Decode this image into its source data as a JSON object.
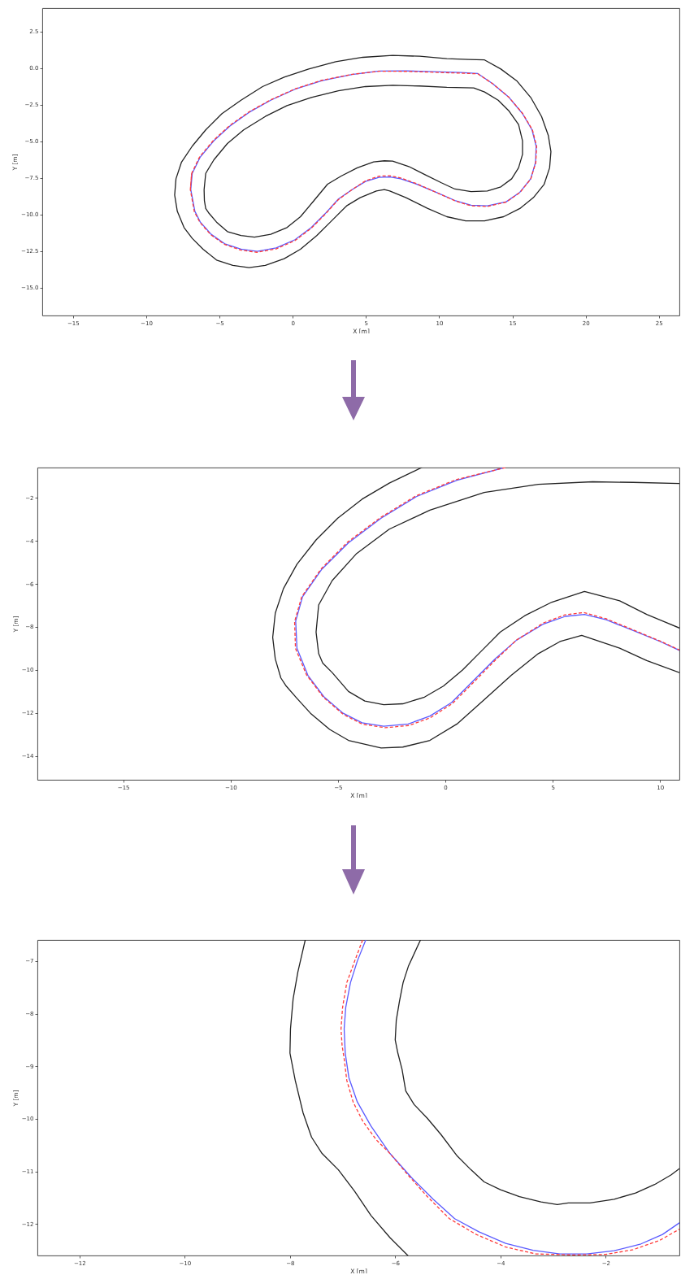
{
  "chart_data": [
    {
      "type": "line",
      "xlabel": "X [m]",
      "ylabel": "Y [m]",
      "xlim": [
        -17.1,
        26.4
      ],
      "ylim": [
        -16.9,
        4.1
      ],
      "xticks": [
        -15,
        -10,
        -5,
        0,
        5,
        10,
        15,
        20,
        25
      ],
      "yticks": [
        2.5,
        {
          "value": 0,
          "label": "0.0"
        },
        -2.5,
        {
          "value": -5,
          "label": "−5.0"
        },
        -7.5,
        {
          "value": -10,
          "label": "−10.0"
        },
        -12.5,
        {
          "value": -15,
          "label": "−15.0"
        }
      ],
      "series": [
        {
          "color": "#222222",
          "x": [
            -8.06,
            -7.97,
            -7.6,
            -6.86,
            -5.94,
            -4.83,
            -3.53,
            -2.06,
            -0.58,
            1.09,
            2.94,
            4.78,
            6.82,
            8.67,
            10.52,
            11.99,
            13.1,
            14.21,
            15.32,
            16.25,
            16.99,
            17.45,
            17.63,
            17.54,
            17.17,
            16.43,
            15.51,
            14.4,
            13.1,
            11.81,
            10.52,
            9.22,
            7.74,
            6.63,
            6.26,
            5.71,
            4.6,
            3.68,
            2.57,
            1.64,
            0.53,
            -0.58,
            -1.87,
            -2.98,
            -4.09,
            -5.2,
            -6.12,
            -6.86,
            -7.42,
            -7.88,
            -8.06,
            -7.97
          ],
          "values": [
            -8.67,
            -7.56,
            -6.44,
            -5.33,
            -4.22,
            -3.11,
            -2.19,
            -1.26,
            -0.61,
            -0.06,
            0.44,
            0.74,
            0.87,
            0.81,
            0.65,
            0.59,
            0.56,
            -0.06,
            -0.89,
            -2.0,
            -3.3,
            -4.59,
            -5.7,
            -6.81,
            -7.93,
            -8.85,
            -9.59,
            -10.15,
            -10.43,
            -10.43,
            -10.15,
            -9.59,
            -8.85,
            -8.39,
            -8.3,
            -8.39,
            -8.85,
            -9.41,
            -10.52,
            -11.44,
            -12.37,
            -13.02,
            -13.48,
            -13.63,
            -13.48,
            -13.11,
            -12.37,
            -11.63,
            -10.89,
            -9.78,
            -8.67,
            -7.56
          ]
        },
        {
          "color": "#222222",
          "x": [
            -6.05,
            -5.94,
            -5.38,
            -4.46,
            -3.35,
            -1.87,
            -0.39,
            1.27,
            3.12,
            4.97,
            6.82,
            8.67,
            10.52,
            12.36,
            13.1,
            14.03,
            14.77,
            15.42,
            15.69,
            15.69,
            15.42,
            14.95,
            14.21,
            13.29,
            12.18,
            11.07,
            10.15,
            9.04,
            7.93,
            6.82,
            6.26,
            5.52,
            4.41,
            3.31,
            2.38,
            1.46,
            0.53,
            -0.39,
            -1.5,
            -2.61,
            -3.53,
            -4.46,
            -5.2,
            -5.75,
            -5.94,
            -6.03,
            -6.05,
            -5.94
          ],
          "values": [
            -8.3,
            -7.19,
            -6.26,
            -5.15,
            -4.22,
            -3.3,
            -2.56,
            -2.0,
            -1.54,
            -1.26,
            -1.17,
            -1.22,
            -1.31,
            -1.35,
            -1.63,
            -2.19,
            -2.93,
            -3.85,
            -4.96,
            -5.89,
            -6.81,
            -7.56,
            -8.11,
            -8.39,
            -8.44,
            -8.26,
            -7.83,
            -7.28,
            -6.72,
            -6.35,
            -6.33,
            -6.41,
            -6.81,
            -7.37,
            -7.93,
            -9.04,
            -10.15,
            -10.89,
            -11.35,
            -11.55,
            -11.44,
            -11.17,
            -10.52,
            -9.87,
            -9.59,
            -9.04,
            -8.3,
            -7.19
          ]
        },
        {
          "color": "#5a5aff",
          "x": [
            -6.96,
            -6.86,
            -6.31,
            -5.38,
            -4.27,
            -2.98,
            -1.5,
            0.16,
            2.01,
            4.05,
            5.89,
            7.74,
            9.59,
            11.44,
            12.64,
            13.66,
            14.77,
            15.69,
            16.34,
            16.62,
            16.58,
            16.25,
            15.51,
            14.58,
            13.29,
            12.18,
            11.07,
            9.78,
            8.48,
            7.37,
            6.63,
            5.89,
            4.97,
            4.05,
            3.12,
            2.2,
            1.27,
            0.16,
            -1.13,
            -2.43,
            -3.53,
            -4.64,
            -5.57,
            -6.31,
            -6.68,
            -6.96,
            -6.86
          ],
          "values": [
            -8.3,
            -7.19,
            -6.07,
            -4.96,
            -3.94,
            -3.02,
            -2.19,
            -1.44,
            -0.85,
            -0.43,
            -0.2,
            -0.19,
            -0.24,
            -0.3,
            -0.37,
            -1.07,
            -2.0,
            -3.11,
            -4.22,
            -5.33,
            -6.44,
            -7.56,
            -8.48,
            -9.13,
            -9.41,
            -9.37,
            -9.04,
            -8.48,
            -7.93,
            -7.56,
            -7.43,
            -7.46,
            -7.74,
            -8.3,
            -8.94,
            -9.96,
            -10.89,
            -11.72,
            -12.28,
            -12.52,
            -12.37,
            -12.0,
            -11.35,
            -10.52,
            -9.78,
            -8.3,
            -7.19
          ]
        },
        {
          "color": "#ff3a3a",
          "line_style": "dashed",
          "x": [
            -6.99,
            -6.9,
            -6.35,
            -5.41,
            -4.29,
            -3.0,
            -1.52,
            0.15,
            2.0,
            4.05,
            5.89,
            7.74,
            9.59,
            11.44,
            12.64,
            13.66,
            14.77,
            15.71,
            16.37,
            16.65,
            16.6,
            16.25,
            15.51,
            14.58,
            13.29,
            12.18,
            11.07,
            9.78,
            8.48,
            7.37,
            6.63,
            5.89,
            4.97,
            4.05,
            3.12,
            2.2,
            1.27,
            0.16,
            -1.13,
            -2.43,
            -3.53,
            -4.64,
            -5.6,
            -6.34,
            -6.72,
            -6.99,
            -6.9
          ],
          "values": [
            -8.3,
            -7.19,
            -6.05,
            -4.93,
            -3.91,
            -3.0,
            -2.17,
            -1.42,
            -0.83,
            -0.42,
            -0.21,
            -0.22,
            -0.28,
            -0.34,
            -0.39,
            -1.07,
            -2.0,
            -3.11,
            -4.22,
            -5.33,
            -6.44,
            -7.58,
            -8.5,
            -9.15,
            -9.45,
            -9.41,
            -9.06,
            -8.48,
            -7.9,
            -7.5,
            -7.35,
            -7.38,
            -7.7,
            -8.3,
            -8.98,
            -10.0,
            -10.94,
            -11.78,
            -12.35,
            -12.58,
            -12.44,
            -12.05,
            -11.38,
            -10.53,
            -9.8,
            -8.3,
            -7.19
          ]
        }
      ]
    },
    {
      "type": "line",
      "xlabel": "X [m]",
      "ylabel": "Y [m]",
      "xlim": [
        -19.0,
        10.9
      ],
      "ylim": [
        -15.1,
        -0.6
      ],
      "xticks": [
        -15,
        -10,
        -5,
        0,
        5,
        10
      ],
      "yticks": [
        -2,
        -4,
        -6,
        -8,
        -10,
        -12,
        -14
      ],
      "series": [
        {
          "color": "#222222",
          "x": [
            -1.1,
            -2.61,
            -3.88,
            -5.01,
            -6.02,
            -6.91,
            -7.54,
            -7.92,
            -8.04,
            -7.92,
            -7.66,
            -7.41,
            -6.91,
            -6.28,
            -5.39,
            -4.51,
            -2.99,
            -1.98,
            -0.72,
            0.54,
            1.81,
            3.07,
            4.33,
            5.34,
            6.35,
            8.12,
            9.38,
            10.9
          ],
          "values": [
            -0.6,
            -1.32,
            -2.07,
            -2.95,
            -3.96,
            -5.09,
            -6.22,
            -7.36,
            -8.49,
            -9.49,
            -10.37,
            -10.75,
            -11.32,
            -12.01,
            -12.76,
            -13.27,
            -13.62,
            -13.58,
            -13.27,
            -12.51,
            -11.38,
            -10.25,
            -9.24,
            -8.68,
            -8.39,
            -8.99,
            -9.56,
            -10.12
          ]
        },
        {
          "color": "#222222",
          "x": [
            10.9,
            8.75,
            6.86,
            4.33,
            1.81,
            -0.72,
            -2.61,
            -4.13,
            -5.27,
            -5.9,
            -6.02,
            -5.9,
            -5.71,
            -5.27,
            -4.51,
            -3.75,
            -2.87,
            -1.98,
            -0.97,
            -0.09,
            0.8,
            1.68,
            2.56,
            3.7,
            4.96,
            6.48,
            8.12,
            9.38,
            10.9
          ],
          "values": [
            -1.34,
            -1.29,
            -1.26,
            -1.38,
            -1.76,
            -2.58,
            -3.46,
            -4.59,
            -5.85,
            -6.98,
            -8.24,
            -9.24,
            -9.68,
            -10.12,
            -11.0,
            -11.44,
            -11.61,
            -11.57,
            -11.26,
            -10.75,
            -10.0,
            -9.12,
            -8.24,
            -7.48,
            -6.85,
            -6.35,
            -6.79,
            -7.42,
            -8.05
          ]
        },
        {
          "color": "#5a5aff",
          "x": [
            2.75,
            0.54,
            -1.35,
            -2.99,
            -4.51,
            -5.77,
            -6.65,
            -6.97,
            -6.91,
            -6.4,
            -5.64,
            -4.76,
            -3.88,
            -2.87,
            -1.73,
            -0.72,
            0.29,
            1.3,
            2.31,
            3.32,
            4.58,
            5.59,
            6.48,
            7.49,
            8.75,
            10.01,
            10.9
          ],
          "values": [
            -0.6,
            -1.19,
            -1.95,
            -2.95,
            -4.09,
            -5.34,
            -6.6,
            -7.73,
            -8.99,
            -10.25,
            -11.26,
            -12.01,
            -12.45,
            -12.61,
            -12.51,
            -12.14,
            -11.51,
            -10.5,
            -9.49,
            -8.61,
            -7.86,
            -7.51,
            -7.42,
            -7.67,
            -8.17,
            -8.68,
            -9.09
          ]
        },
        {
          "color": "#ff3a3a",
          "line_style": "dashed",
          "x": [
            2.8,
            0.5,
            -1.38,
            -3.02,
            -4.55,
            -5.8,
            -6.69,
            -7.02,
            -6.98,
            -6.47,
            -5.68,
            -4.76,
            -3.86,
            -2.8,
            -1.7,
            -0.7,
            0.33,
            1.35,
            2.35,
            3.33,
            4.56,
            5.57,
            6.45,
            7.49,
            8.75,
            10.01,
            10.9
          ],
          "values": [
            -0.6,
            -1.16,
            -1.92,
            -2.92,
            -4.06,
            -5.32,
            -6.6,
            -7.75,
            -9.0,
            -10.22,
            -11.27,
            -12.06,
            -12.52,
            -12.68,
            -12.58,
            -12.22,
            -11.56,
            -10.54,
            -9.52,
            -8.6,
            -7.82,
            -7.44,
            -7.33,
            -7.62,
            -8.14,
            -8.66,
            -9.07
          ]
        }
      ]
    },
    {
      "type": "line",
      "xlabel": "X [m]",
      "ylabel": "Y [m]",
      "xlim": [
        -12.8,
        -0.6
      ],
      "ylim": [
        -12.6,
        -6.6
      ],
      "xticks": [
        -12,
        -10,
        -8,
        -6,
        -4,
        -2
      ],
      "yticks": [
        -7,
        -8,
        -9,
        -10,
        -11,
        -12
      ],
      "series": [
        {
          "color": "#222222",
          "x": [
            -7.71,
            -7.85,
            -7.94,
            -7.99,
            -8.0,
            -7.9,
            -7.75,
            -7.59,
            -7.39,
            -7.08,
            -6.77,
            -6.46,
            -6.1,
            -5.76
          ],
          "values": [
            -6.6,
            -7.21,
            -7.72,
            -8.29,
            -8.75,
            -9.27,
            -9.89,
            -10.35,
            -10.66,
            -10.97,
            -11.38,
            -11.84,
            -12.26,
            -12.6
          ]
        },
        {
          "color": "#222222",
          "x": [
            -5.52,
            -5.75,
            -5.85,
            -5.92,
            -5.98,
            -6.0,
            -5.95,
            -5.87,
            -5.8,
            -5.64,
            -5.39,
            -5.13,
            -4.82,
            -4.56,
            -4.31,
            -4.0,
            -3.64,
            -3.23,
            -2.92,
            -2.71,
            -2.3,
            -1.84,
            -1.43,
            -1.07,
            -0.76,
            -0.6
          ],
          "values": [
            -6.6,
            -7.1,
            -7.41,
            -7.77,
            -8.13,
            -8.5,
            -8.75,
            -9.06,
            -9.47,
            -9.73,
            -9.99,
            -10.3,
            -10.71,
            -10.97,
            -11.2,
            -11.35,
            -11.48,
            -11.58,
            -11.63,
            -11.6,
            -11.6,
            -11.53,
            -11.41,
            -11.25,
            -11.07,
            -10.95
          ]
        },
        {
          "color": "#5a5aff",
          "x": [
            -6.56,
            -6.72,
            -6.85,
            -6.94,
            -6.97,
            -6.95,
            -6.88,
            -6.72,
            -6.46,
            -6.1,
            -5.69,
            -5.28,
            -4.87,
            -4.41,
            -3.9,
            -3.38,
            -2.87,
            -2.36,
            -1.84,
            -1.33,
            -0.92,
            -0.6
          ],
          "values": [
            -6.6,
            -7.0,
            -7.41,
            -7.88,
            -8.29,
            -8.75,
            -9.22,
            -9.68,
            -10.14,
            -10.66,
            -11.12,
            -11.53,
            -11.9,
            -12.15,
            -12.37,
            -12.5,
            -12.57,
            -12.57,
            -12.51,
            -12.38,
            -12.2,
            -11.98
          ]
        },
        {
          "color": "#ff3a3a",
          "line_style": "dashed",
          "x": [
            -6.62,
            -6.77,
            -6.92,
            -7.0,
            -7.03,
            -7.01,
            -6.97,
            -6.92,
            -6.8,
            -6.62,
            -6.36,
            -6.1,
            -5.8,
            -5.39,
            -4.97,
            -4.46,
            -3.9,
            -3.33,
            -2.61,
            -2.0,
            -1.48,
            -0.97,
            -0.6
          ],
          "values": [
            -6.6,
            -7.0,
            -7.41,
            -7.88,
            -8.29,
            -8.6,
            -8.86,
            -9.27,
            -9.68,
            -10.04,
            -10.4,
            -10.66,
            -11.02,
            -11.48,
            -11.9,
            -12.2,
            -12.44,
            -12.57,
            -12.59,
            -12.58,
            -12.49,
            -12.31,
            -12.1
          ]
        }
      ]
    }
  ]
}
